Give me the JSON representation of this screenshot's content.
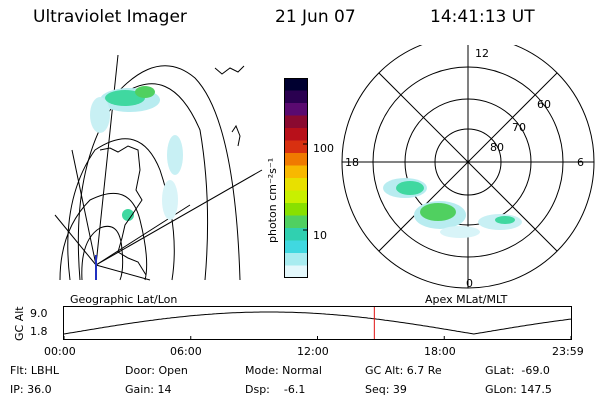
{
  "header": {
    "instrument": "Ultraviolet Imager",
    "date": "21 Jun 07",
    "time": "14:41:13 UT"
  },
  "colorbar": {
    "unit_label": "photon cm⁻²s⁻¹",
    "tick_labels": [
      "100",
      "10"
    ],
    "colors": [
      "#000030",
      "#2a0050",
      "#5a0a70",
      "#8a0a30",
      "#b8101a",
      "#d83010",
      "#f07a00",
      "#f8b800",
      "#e8e000",
      "#c8f000",
      "#88e000",
      "#50d060",
      "#30d0b0",
      "#40d8e0",
      "#a8ecf0",
      "#e4f8fc"
    ]
  },
  "left_panel": {
    "label": "Geographic Lat/Lon"
  },
  "right_panel": {
    "label": "Apex  MLat/MLT",
    "mlt_labels": [
      "12",
      "18",
      "6",
      "0"
    ],
    "mlat_labels": [
      "60",
      "70",
      "80"
    ]
  },
  "altitude_plot": {
    "ylabel": "GC Alt",
    "y_ticks": [
      "9.0",
      "1.8"
    ],
    "x_ticks": [
      "00:00",
      "06:00",
      "12:00",
      "18:00",
      "23:59"
    ],
    "current_time_marker_hours": 14.69
  },
  "info": {
    "filter": "Flt: LBHL",
    "ip": "IP: 36.0",
    "door": "Door: Open",
    "gain": "Gain: 14",
    "mode": "Mode: Normal",
    "dsp": "Dsp:    -6.1",
    "gc_alt": "GC Alt: 6.7 Re",
    "seq": "Seq: 39",
    "glat": "GLat:  -69.0",
    "glon": "GLon: 147.5"
  }
}
